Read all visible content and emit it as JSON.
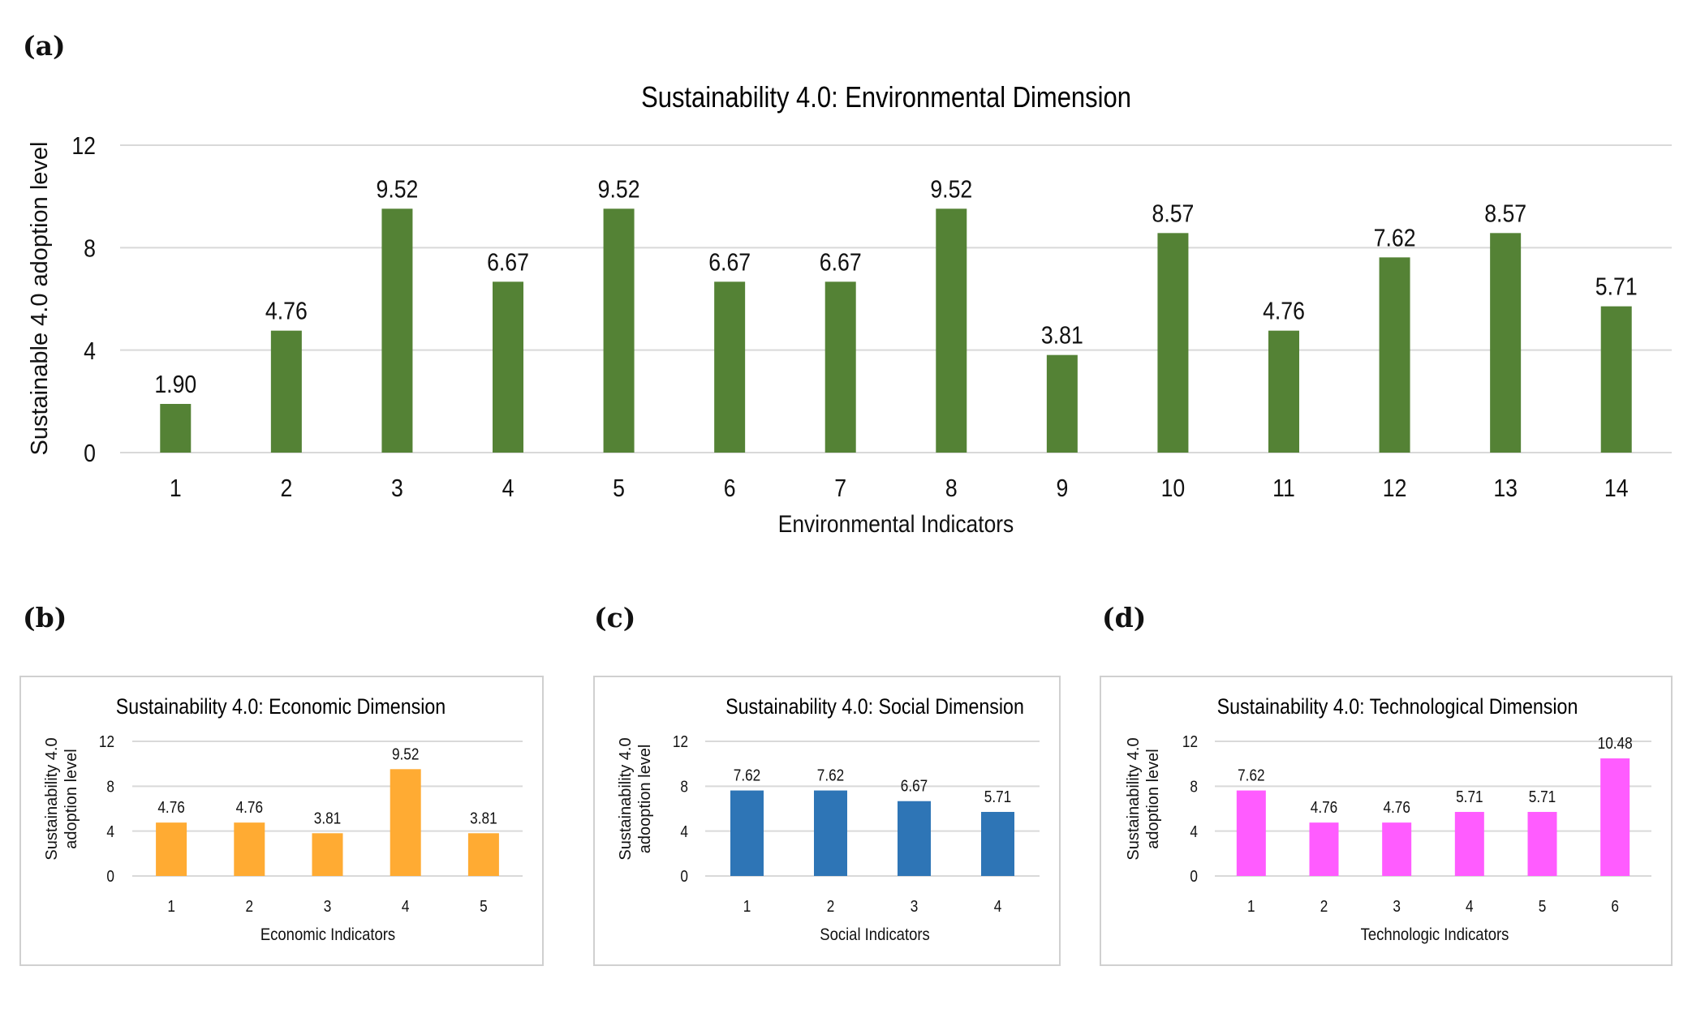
{
  "figure": {
    "panel_labels": [
      "(a)",
      "(b)",
      "(c)",
      "(d)"
    ]
  },
  "colors": {
    "environmental": "#548235",
    "economic": "#ffab33",
    "social": "#2e75b6",
    "technological": "#ff5cff",
    "gridline": "#d9d9d9",
    "frame": "#d0d0d0",
    "text": "#111111"
  },
  "chart_data": [
    {
      "id": "environmental",
      "panel": "(a)",
      "type": "bar",
      "title": "Sustainability 4.0:  Environmental Dimension",
      "xlabel": "Environmental Indicators",
      "ylabel": "Sustainable 4.0 adoption level",
      "categories": [
        "1",
        "2",
        "3",
        "4",
        "5",
        "6",
        "7",
        "8",
        "9",
        "10",
        "11",
        "12",
        "13",
        "14"
      ],
      "values": [
        1.9,
        4.76,
        9.52,
        6.67,
        9.52,
        6.67,
        6.67,
        9.52,
        3.81,
        8.57,
        4.76,
        7.62,
        8.57,
        5.71
      ],
      "data_labels": [
        "1.90",
        "4.76",
        "9.52",
        "6.67",
        "9.52",
        "6.67",
        "6.67",
        "9.52",
        "3.81",
        "8.57",
        "4.76",
        "7.62",
        "8.57",
        "5.71"
      ],
      "ylim": [
        0,
        12
      ],
      "yticks": [
        0,
        4,
        8,
        12
      ],
      "grid": true,
      "legend": "none",
      "color": "#548235"
    },
    {
      "id": "economic",
      "panel": "(b)",
      "type": "bar",
      "title": "Sustainability  4.0: Economic Dimension",
      "xlabel": "Economic Indicators",
      "ylabel": [
        "Sustainability  4.0",
        "adoption  level"
      ],
      "categories": [
        "1",
        "2",
        "3",
        "4",
        "5"
      ],
      "values": [
        4.76,
        4.76,
        3.81,
        9.52,
        3.81
      ],
      "data_labels": [
        "4.76",
        "4.76",
        "3.81",
        "9.52",
        "3.81"
      ],
      "ylim": [
        0,
        12
      ],
      "yticks": [
        0,
        4,
        8,
        12
      ],
      "grid": true,
      "legend": "none",
      "color": "#ffab33"
    },
    {
      "id": "social",
      "panel": "(c)",
      "type": "bar",
      "title": "Sustainability  4.0: Social  Dimension",
      "xlabel": "Social Indicators",
      "ylabel": [
        "Sustainability  4.0",
        "adooption  level"
      ],
      "categories": [
        "1",
        "2",
        "3",
        "4"
      ],
      "values": [
        7.62,
        7.62,
        6.67,
        5.71
      ],
      "data_labels": [
        "7.62",
        "7.62",
        "6.67",
        "5.71"
      ],
      "ylim": [
        0,
        12
      ],
      "yticks": [
        0,
        4,
        8,
        12
      ],
      "grid": true,
      "legend": "none",
      "color": "#2e75b6"
    },
    {
      "id": "technological",
      "panel": "(d)",
      "type": "bar",
      "title": "Sustainability  4.0: Technological Dimension",
      "xlabel": "Technologic  Indicators",
      "ylabel": [
        "Sustainability  4.0",
        "adoption  level"
      ],
      "categories": [
        "1",
        "2",
        "3",
        "4",
        "5",
        "6"
      ],
      "values": [
        7.62,
        4.76,
        4.76,
        5.71,
        5.71,
        10.48
      ],
      "data_labels": [
        "7.62",
        "4.76",
        "4.76",
        "5.71",
        "5.71",
        "10.48"
      ],
      "ylim": [
        0,
        12
      ],
      "yticks": [
        0,
        4,
        8,
        12
      ],
      "grid": true,
      "legend": "none",
      "color": "#ff5cff"
    }
  ]
}
